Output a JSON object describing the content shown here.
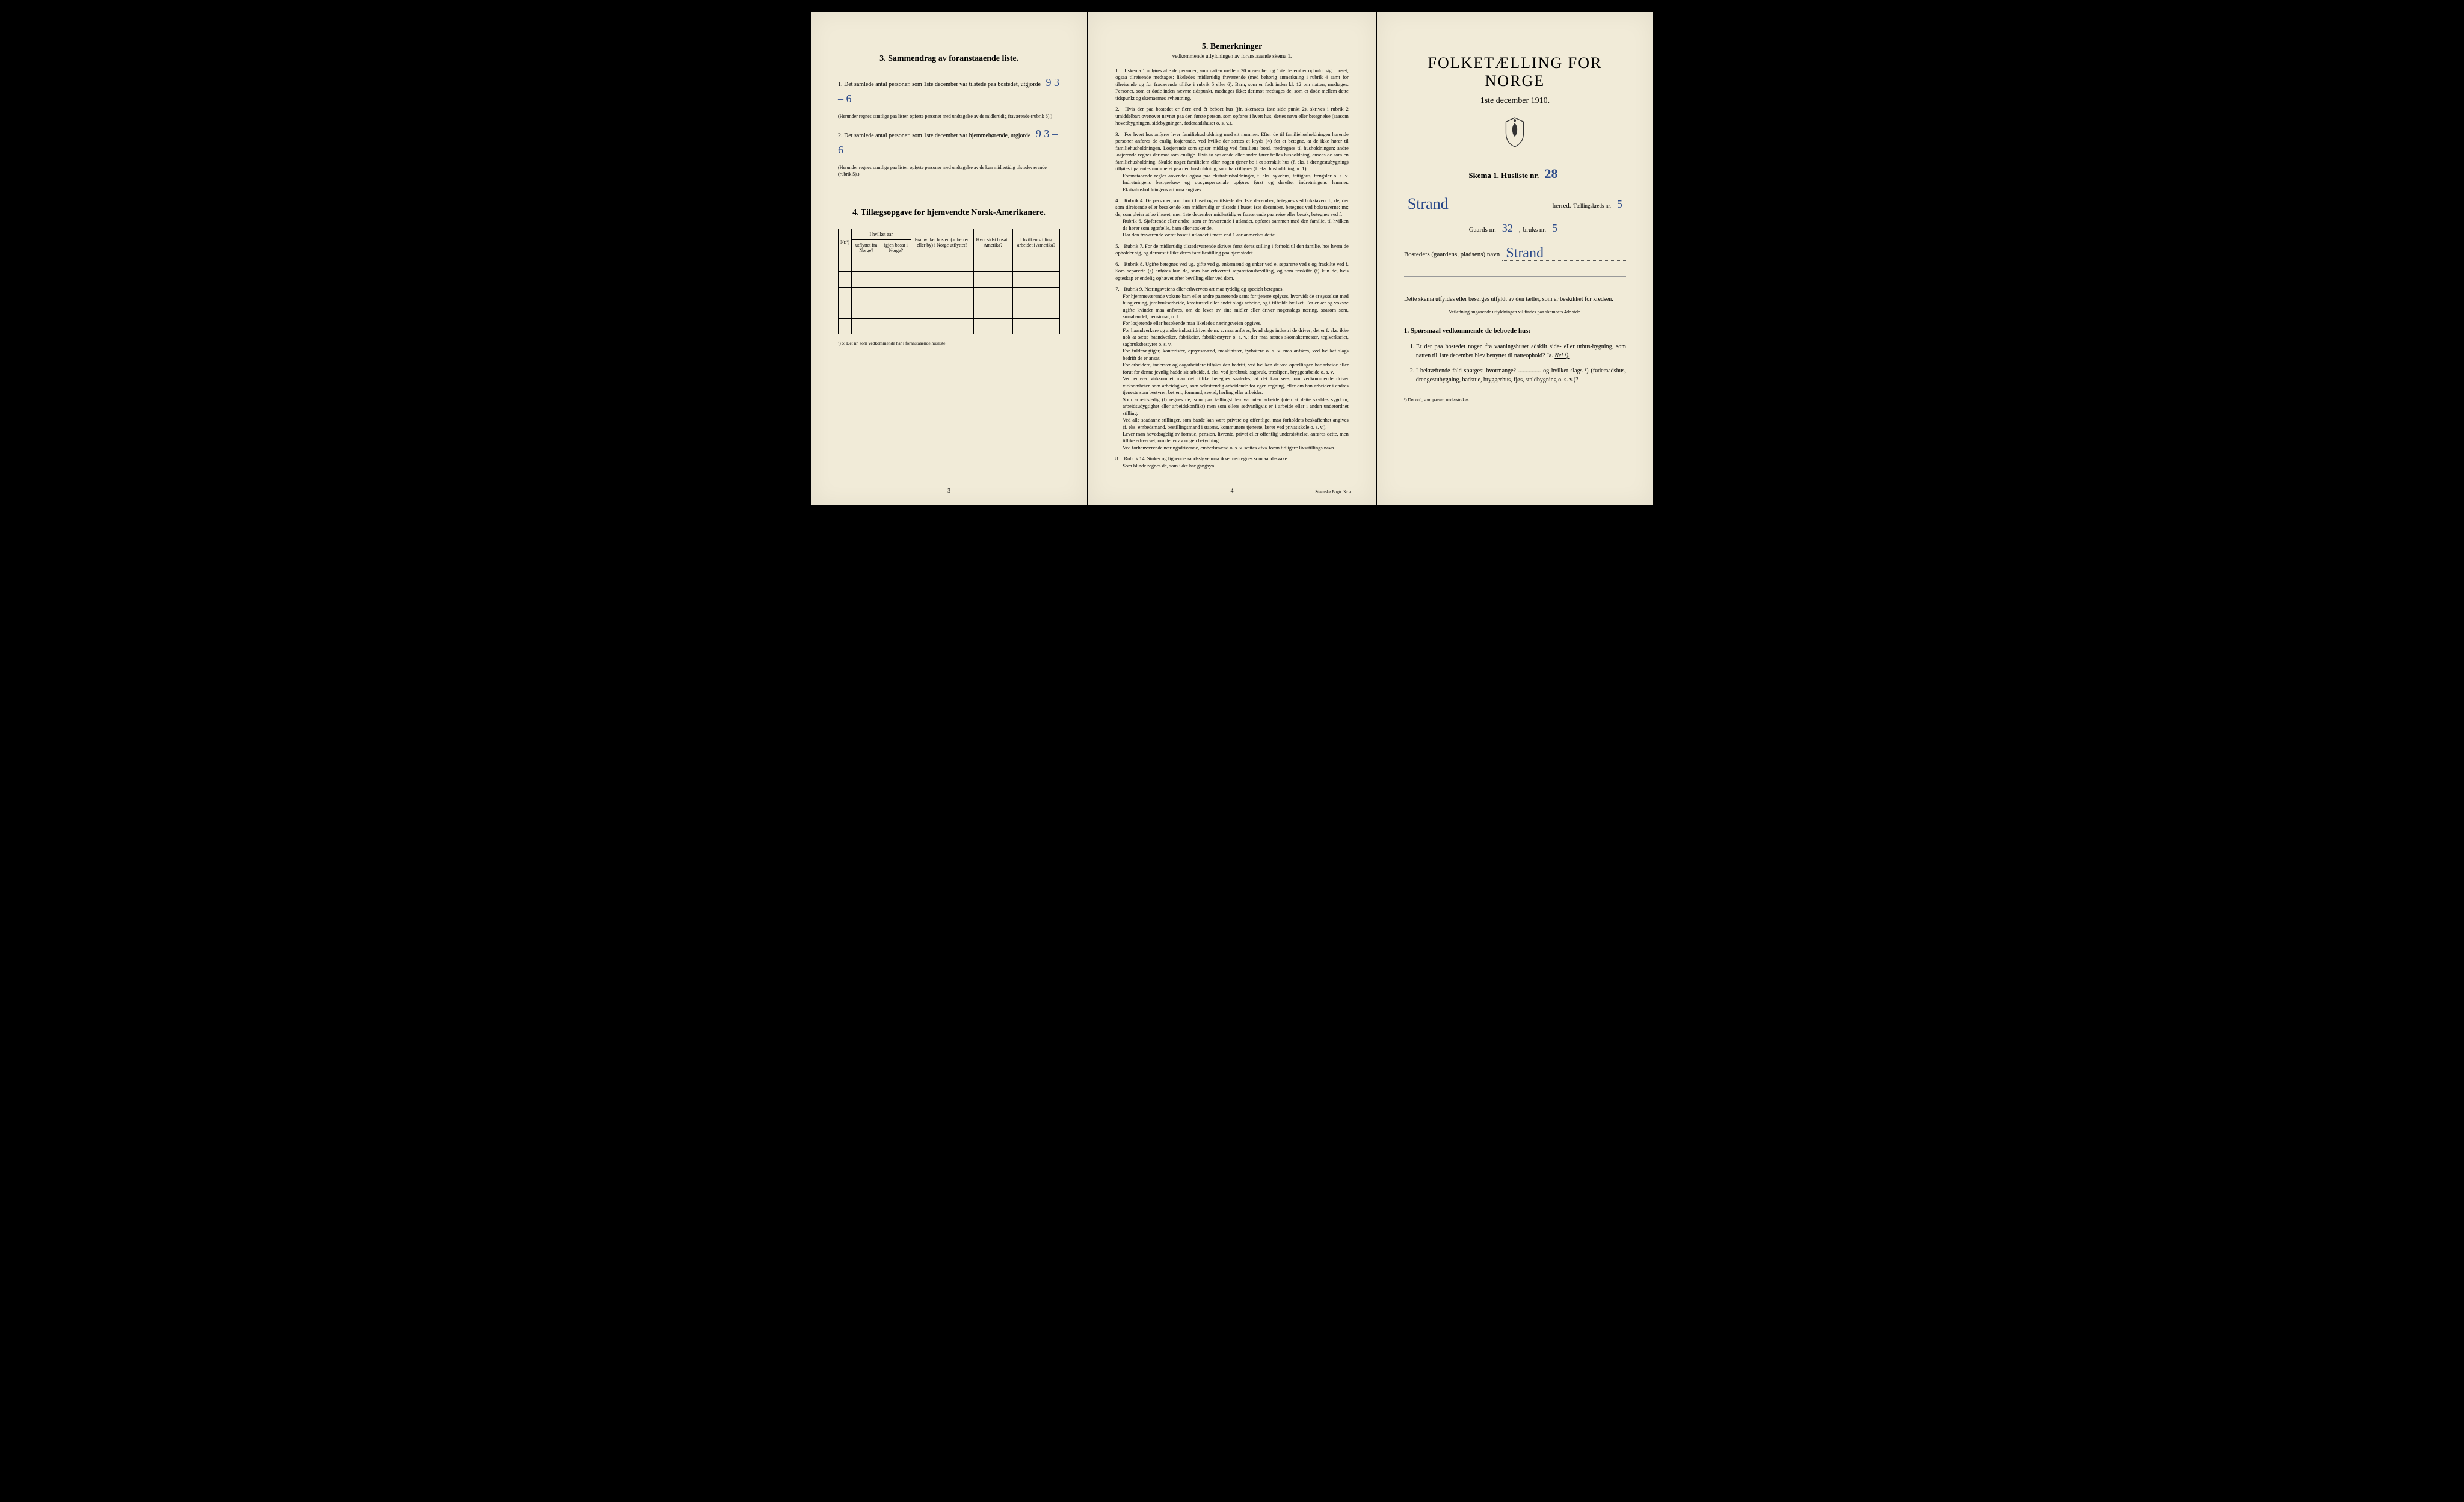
{
  "page3": {
    "section3_title": "3.   Sammendrag av foranstaaende liste.",
    "line1_pre": "1.  Det samlede antal personer, som 1ste december var tilstede paa bostedet, utgjorde",
    "line1_hand": "9   3 – 6",
    "line1_note": "(Herunder regnes samtlige paa listen opførte personer med undtagelse av de midlertidig fraværende (rubrik 6).)",
    "line2_pre": "2.  Det samlede antal personer, som 1ste december var hjemmehørende, utgjorde",
    "line2_hand": "9 3 – 6",
    "line2_note": "(Herunder regnes samtlige paa listen opførte personer med undtagelse av de kun midlertidig tilstedeværende (rubrik 5).)",
    "section4_title": "4.   Tillægsopgave for hjemvendte Norsk-Amerikanere.",
    "tableHeaders": {
      "nr": "Nr.¹)",
      "aar_group": "I hvilket aar",
      "utflyttet": "utflyttet fra Norge?",
      "igjen": "igjen bosat i Norge?",
      "bosted": "Fra hvilket bosted (ɔ: herred eller by) i Norge utflyttet?",
      "sidst": "Hvor sidst bosat i Amerika?",
      "stilling": "I hvilken stilling arbeidet i Amerika?"
    },
    "footnote": "¹) ɔ: Det nr. som vedkommende har i foranstaaende husliste.",
    "pagenum": "3"
  },
  "page4": {
    "title": "5.   Bemerkninger",
    "subtitle": "vedkommende utfyldningen av foranstaaende skema 1.",
    "items": [
      "I skema 1 anføres alle de personer, som natten mellem 30 november og 1ste december opholdt sig i huset; ogsaa tilreisende medtages; likeledes midlertidig fraværende (med behørig anmerkning i rubrik 4 samt for tilreisende og for fraværende tillike i rubrik 5 eller 6). Barn, som er født inden kl. 12 om natten, medtages. Personer, som er døde inden nævnte tidspunkt, medtages ikke; derimot medtages de, som er døde mellem dette tidspunkt og skemaernes avhentning.",
      "Hvis der paa bostedet er flere end ét beboet hus (jfr. skemaets 1ste side punkt 2), skrives i rubrik 2 umiddelbart ovenover navnet paa den første person, som opføres i hvert hus, dettes navn eller betegnelse (saasom hovedbygningen, sidebygningen, føderaadshuset o. s. v.).",
      "For hvert hus anføres hver familiehusholdning med sit nummer. Efter de til familiehusholdningen hørende personer anføres de enslig losjerende, ved hvilke der sættes et kryds (×) for at betegne, at de ikke hører til familiehusholdningen. Losjerende som spiser middag ved familiens bord, medregnes til husholdningen; andre losjerende regnes derimot som enslige. Hvis to søskende eller andre fører fælles husholdning, ansees de som en familiehusholdning. Skulde noget familielem eller nogen tjener bo i et særskilt hus (f. eks. i drengestubygning) tilføies i parentes nummeret paa den husholdning, som han tilhører (f. eks. husholdning nr. 1).\nForanstaaende regler anvendes ogsaa paa ekstrahusholdninger, f. eks. sykehus, fattighus, fængsler o. s. v. Indretningens bestyrelses- og opsynspersonale opføres først og derefter indretningens lemmer. Ekstrahusholdningens art maa angives.",
      "Rubrik 4. De personer, som bor i huset og er tilstede der 1ste december, betegnes ved bokstaven: b; de, der som tilreisende eller besøkende kun midlertidig er tilstede i huset 1ste december, betegnes ved bokstaverne: mt; de, som pleier at bo i huset, men 1ste december midlertidig er fraværende paa reise eller besøk, betegnes ved f.\nRubrik 6. Sjøfarende eller andre, som er fraværende i utlandet, opføres sammen med den familie, til hvilken de hører som egtefælle, barn eller søskende.\nHar den fraværende været bosat i utlandet i mere end 1 aar anmerkes dette.",
      "Rubrik 7. For de midlertidig tilstedeværende skrives først deres stilling i forhold til den familie, hos hvem de opholder sig, og dernæst tillike deres familiestilling paa hjemstedet.",
      "Rubrik 8. Ugifte betegnes ved ug, gifte ved g, enkemænd og enker ved e, separerte ved s og fraskilte ved f. Som separerte (s) anføres kun de, som har erhvervet separationsbevilling, og som fraskilte (f) kun de, hvis egteskap er endelig ophævet efter bevilling eller ved dom.",
      "Rubrik 9. Næringsveiens eller erhvervets art maa tydelig og specielt betegnes.\nFor hjemmeværende voksne barn eller andre paarørende samt for tjenere oplyses, hvorvidt de er sysselsat med husgjerning, jordbruksarbeide, kreaturstel eller andet slags arbeide, og i tilfælde hvilket. For enker og voksne ugifte kvinder maa anføres, om de lever av sine midler eller driver nogenslags næring, saasom søm, smaahandel, pensionat, o. l.\nFor losjerende eller besøkende maa likeledes næringsveien opgives.\nFor haandverkere og andre industridrivende m. v. maa anføres, hvad slags industri de driver; det er f. eks. ikke nok at sætte haandverker, fabrikeier, fabrikbestyrer o. s. v.; der maa sættes skomakermester, teglverkseier, sagbruksbestyrer o. s. v.\nFor fuldmægtiger, kontorister, opsynsmænd, maskinister, fyrbøtere o. s. v. maa anføres, ved hvilket slags bedrift de er ansat.\nFor arbeidere, inderster og dagarbeidere tilføies den bedrift, ved hvilken de ved optællingen har arbeide eller forut for denne jevnlig hadde sit arbeide, f. eks. ved jordbruk, sagbruk, træsliperi, bryggearbeide o. s. v.\nVed enhver virksomhet maa det tillike betegnes saaledes, at det kan sees, om vedkommende driver virksomheten som arbeidsgiver, som selvstændig arbeidende for egen regning, eller om han arbeider i andres tjeneste som bestyrer, betjent, formand, svend, lærling eller arbeider.\nSom arbeidsledig (l) regnes de, som paa tællingstiden var uten arbeide (uten at dette skyldes sygdom, arbeidsudygtighet eller arbeidskonflikt) men som ellers sedvanligvis er i arbeide eller i anden underordnet stilling.\nVed alle saadanne stillinger, som baade kan være private og offentlige, maa forholdets beskaffenhet angives (f. eks. embedsmand, bestillingsmand i statens, kommunens tjeneste, lærer ved privat skole o. s. v.).\nLever man hovedsagelig av formue, pension, livrente, privat eller offentlig understøttelse, anføres dette, men tillike erhvervet, om det er av nogen betydning.\nVed forhenværende næringsdrivende, embedsmænd o. s. v. sættes «fv» foran tidligere livsstillings navn.",
      "Rubrik 14. Sinker og lignende aandssløve maa ikke medregnes som aandssvake.\nSom blinde regnes de, som ikke har gangsyn."
    ],
    "pagenum": "4",
    "imprint": "Steen'ske Bogtr.  Kr.a."
  },
  "cover": {
    "title": "FOLKETÆLLING FOR NORGE",
    "date": "1ste december 1910.",
    "skema_label": "Skema 1.   Husliste nr.",
    "husliste_nr": "28",
    "herred_hand": "Strand",
    "herred_label": "herred.",
    "kreds_label": "Tællingskreds nr.",
    "kreds_nr": "5",
    "gaards_label": "Gaards nr.",
    "gaards_nr": "32",
    "bruks_label": "bruks nr.",
    "bruks_nr": "5",
    "bosted_label": "Bostedets (gaardens, pladsens) navn",
    "bosted_hand": "Strand",
    "instr_lead": "Dette skema utfyldes eller besørges utfyldt av den tæller, som er beskikket for kredsen.",
    "instr_sub": "Veiledning angaaende utfyldningen vil findes paa skemaets 4de side.",
    "q_header": "1. Spørsmaal vedkommende de beboede hus:",
    "q1": "Er der paa bostedet nogen fra vaaningshuset adskilt side- eller uthus-bygning, som natten til 1ste december blev benyttet til natteophold?   Ja.   ",
    "q1_answer": "Nei ¹).",
    "q2": "I bekræftende fald spørges: hvormange? ............... og hvilket slags ¹) (føderaadshus, drengestubygning, badstue, bryggerhus, fjøs, staldbygning o. s. v.)?",
    "footnote": "¹) Det ord, som passer, understrekes."
  }
}
